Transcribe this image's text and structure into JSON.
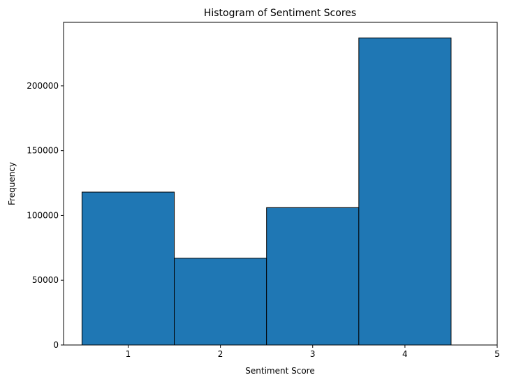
{
  "chart_data": {
    "type": "bar",
    "title": "Histogram of Sentiment Scores",
    "xlabel": "Sentiment Score",
    "ylabel": "Frequency",
    "bins": [
      {
        "start": 0.5,
        "end": 1.5,
        "value": 118000
      },
      {
        "start": 1.5,
        "end": 2.5,
        "value": 67000
      },
      {
        "start": 2.5,
        "end": 3.5,
        "value": 106000
      },
      {
        "start": 3.5,
        "end": 4.5,
        "value": 237000
      }
    ],
    "xlim": [
      0.3,
      5.0
    ],
    "ylim": [
      0,
      249000
    ],
    "xticks": [
      1,
      2,
      3,
      4,
      5
    ],
    "yticks": [
      0,
      50000,
      100000,
      150000,
      200000
    ],
    "grid": false,
    "colors": {
      "bar_fill": "#1f77b4",
      "bar_edge": "#000000"
    }
  }
}
